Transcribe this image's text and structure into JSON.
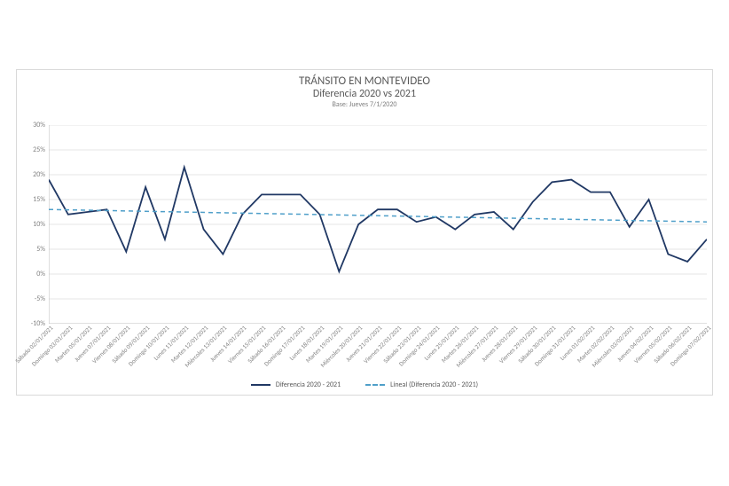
{
  "chart": {
    "type": "line",
    "title": "TRÁNSITO EN MONTEVIDEO",
    "subtitle": "Diferencia 2020 vs 2021",
    "baseline_note": "Base: Jueves 7/1/2020",
    "title_fontsize": 13,
    "subtitle_fontsize": 12,
    "note_fontsize": 8,
    "background_color": "#ffffff",
    "border_color": "#d9d9d9",
    "grid_color": "#e6e6e6",
    "axis_line_color": "#bfbfbf",
    "tick_label_color": "#808080",
    "tick_fontsize": 8,
    "categories": [
      "Sábado 02/01/2021",
      "Domingo 03/01/2021",
      "Martes 05/01/2021",
      "Jueves 07/01/2021",
      "Viernes 08/01/2021",
      "Sábado 09/01/2021",
      "Domingo 10/01/2021",
      "Lunes 11/01/2021",
      "Martes 12/01/2021",
      "Miércoles 13/01/2021",
      "Jueves 14/01/2021",
      "Viernes 15/01/2021",
      "Sábado 16/01/2021",
      "Domingo 17/01/2021",
      "Lunes 18/01/2021",
      "Martes 19/01/2021",
      "Miércoles 20/01/2021",
      "Jueves 21/01/2021",
      "Viernes 22/01/2021",
      "Sábado 23/01/2021",
      "Domingo 24/01/2021",
      "Lunes 25/01/2021",
      "Martes 26/01/2021",
      "Miércoles 27/01/2021",
      "Jueves 28/01/2021",
      "Viernes 29/01/2021",
      "Sábado 30/01/2021",
      "Domingo 31/01/2021",
      "Lunes 01/02/2021",
      "Martes 02/02/2021",
      "Miércoles 03/02/2021",
      "Jueves 04/02/2021",
      "Viernes 05/02/2021",
      "Sábado 06/02/2021",
      "Domingo 07/02/2021"
    ],
    "series": {
      "diferencia": {
        "label": "Diferencia 2020 - 2021",
        "color": "#203864",
        "line_width": 1.8,
        "values": [
          19,
          12,
          12.5,
          13,
          4.5,
          17.5,
          7,
          21.5,
          9,
          4,
          12,
          16,
          16,
          16,
          12,
          0.5,
          10,
          13,
          13,
          10.5,
          11.5,
          9,
          12,
          12.5,
          9,
          14.5,
          18.5,
          19,
          16.5,
          16.5,
          9.5,
          15,
          4,
          2.5,
          7
        ]
      },
      "trend": {
        "label": "Lineal (Diferencia 2020 - 2021)",
        "color": "#4f9fc9",
        "dash": "5 4",
        "line_width": 1.5,
        "start_value": 13.0,
        "end_value": 10.5
      }
    },
    "y_axis": {
      "min": -10,
      "max": 30,
      "tick_step": 5,
      "ticks": [
        -10,
        -5,
        0,
        5,
        10,
        15,
        20,
        25,
        30
      ],
      "tick_labels": [
        "-10%",
        "-5%",
        "0%",
        "5%",
        "10%",
        "15%",
        "20%",
        "25%",
        "30%"
      ]
    },
    "x_axis": {
      "label_rotation_deg": -45
    },
    "legend": {
      "position": "bottom-center",
      "items": [
        "diferencia",
        "trend"
      ]
    }
  }
}
